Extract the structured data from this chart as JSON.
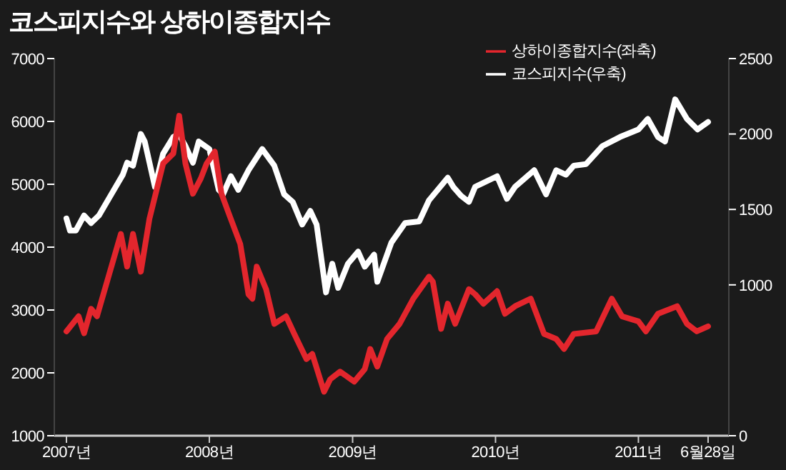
{
  "chart_data": {
    "type": "line",
    "title": "코스피지수와 상하이종합지수",
    "xlim": [
      "2006-12-01",
      "2011-08-20"
    ],
    "xticks": [
      {
        "value": "2007-01-01",
        "label": "2007년"
      },
      {
        "value": "2008-01-01",
        "label": "2008년"
      },
      {
        "value": "2009-01-01",
        "label": "2009년"
      },
      {
        "value": "2010-01-01",
        "label": "2010년"
      },
      {
        "value": "2011-01-01",
        "label": "2011년"
      },
      {
        "value": "2011-06-28",
        "label": "6월28일"
      }
    ],
    "ylim": [
      1000,
      7000
    ],
    "yticks": [
      1000,
      2000,
      3000,
      4000,
      5000,
      6000,
      7000
    ],
    "y2lim": [
      0,
      2500
    ],
    "y2ticks": [
      0,
      1000,
      1500,
      2000,
      2500
    ],
    "legend": "top right",
    "grid": false,
    "marker": "none",
    "line_style": "solid",
    "series": [
      {
        "name": "상하이종합지수(좌축)",
        "color": "#e3262d",
        "axis": "y",
        "x": [
          "2007-01-01",
          "2007-02-01",
          "2007-02-15",
          "2007-03-05",
          "2007-03-20",
          "2007-05-20",
          "2007-06-05",
          "2007-06-20",
          "2007-07-10",
          "2007-08-01",
          "2007-09-05",
          "2007-10-01",
          "2007-10-16",
          "2007-11-01",
          "2007-11-20",
          "2007-12-10",
          "2007-12-25",
          "2008-01-15",
          "2008-02-01",
          "2008-02-20",
          "2008-03-20",
          "2008-04-10",
          "2008-04-20",
          "2008-05-01",
          "2008-05-25",
          "2008-06-15",
          "2008-07-15",
          "2008-08-05",
          "2008-09-05",
          "2008-09-20",
          "2008-10-20",
          "2008-11-05",
          "2008-11-30",
          "2009-01-05",
          "2009-02-01",
          "2009-02-15",
          "2009-03-05",
          "2009-03-30",
          "2009-05-01",
          "2009-06-05",
          "2009-07-15",
          "2009-07-25",
          "2009-08-15",
          "2009-09-01",
          "2009-09-20",
          "2009-10-25",
          "2009-11-10",
          "2009-12-01",
          "2010-01-05",
          "2010-01-25",
          "2010-02-20",
          "2010-04-01",
          "2010-05-05",
          "2010-06-05",
          "2010-06-25",
          "2010-07-20",
          "2010-09-15",
          "2010-10-25",
          "2010-11-20",
          "2011-01-01",
          "2011-01-20",
          "2011-02-20",
          "2011-04-10",
          "2011-05-05",
          "2011-05-30",
          "2011-06-28"
        ],
        "values": [
          2660,
          2900,
          2630,
          3020,
          2900,
          4210,
          3690,
          4210,
          3610,
          4450,
          5330,
          5490,
          6090,
          5330,
          4850,
          5090,
          5330,
          5520,
          4850,
          4530,
          4050,
          3250,
          3180,
          3690,
          3330,
          2780,
          2900,
          2620,
          2220,
          2300,
          1700,
          1900,
          2020,
          1860,
          2060,
          2380,
          2100,
          2540,
          2780,
          3180,
          3530,
          3450,
          2700,
          3100,
          2780,
          3330,
          3250,
          3100,
          3300,
          2940,
          3060,
          3180,
          2620,
          2540,
          2380,
          2620,
          2660,
          3180,
          2900,
          2820,
          2660,
          2940,
          3060,
          2780,
          2660,
          2740
        ]
      },
      {
        "name": "코스피지수(우축)",
        "color": "#ffffff",
        "axis": "y2",
        "x": [
          "2007-01-01",
          "2007-01-10",
          "2007-01-25",
          "2007-02-15",
          "2007-03-05",
          "2007-03-25",
          "2007-05-25",
          "2007-06-05",
          "2007-06-20",
          "2007-07-10",
          "2007-07-20",
          "2007-08-15",
          "2007-09-05",
          "2007-10-01",
          "2007-10-15",
          "2007-11-01",
          "2007-11-20",
          "2007-12-05",
          "2008-01-01",
          "2008-01-25",
          "2008-02-05",
          "2008-02-25",
          "2008-03-15",
          "2008-04-10",
          "2008-05-15",
          "2008-06-15",
          "2008-07-10",
          "2008-08-01",
          "2008-08-25",
          "2008-09-15",
          "2008-10-01",
          "2008-10-25",
          "2008-11-10",
          "2008-11-25",
          "2008-12-20",
          "2009-01-15",
          "2009-02-01",
          "2009-02-25",
          "2009-03-05",
          "2009-04-10",
          "2009-05-15",
          "2009-06-20",
          "2009-07-15",
          "2009-09-01",
          "2009-09-15",
          "2009-10-05",
          "2009-10-25",
          "2009-11-10",
          "2010-01-05",
          "2010-01-30",
          "2010-02-20",
          "2010-04-10",
          "2010-05-10",
          "2010-06-05",
          "2010-06-30",
          "2010-07-20",
          "2010-08-20",
          "2010-10-01",
          "2010-11-15",
          "2011-01-01",
          "2011-01-25",
          "2011-02-20",
          "2011-03-10",
          "2011-04-05",
          "2011-05-05",
          "2011-06-01",
          "2011-06-28"
        ],
        "values": [
          1440,
          1360,
          1360,
          1460,
          1410,
          1460,
          1730,
          1810,
          1790,
          2000,
          1950,
          1650,
          1870,
          1980,
          2000,
          1920,
          1810,
          1950,
          1900,
          1630,
          1600,
          1720,
          1630,
          1760,
          1900,
          1790,
          1600,
          1550,
          1400,
          1490,
          1400,
          950,
          1140,
          980,
          1140,
          1220,
          1120,
          1200,
          1020,
          1280,
          1410,
          1420,
          1560,
          1710,
          1650,
          1590,
          1550,
          1650,
          1720,
          1570,
          1650,
          1760,
          1600,
          1760,
          1730,
          1790,
          1800,
          1920,
          1980,
          2030,
          2100,
          1980,
          1950,
          2230,
          2100,
          2030,
          2080
        ]
      }
    ]
  }
}
